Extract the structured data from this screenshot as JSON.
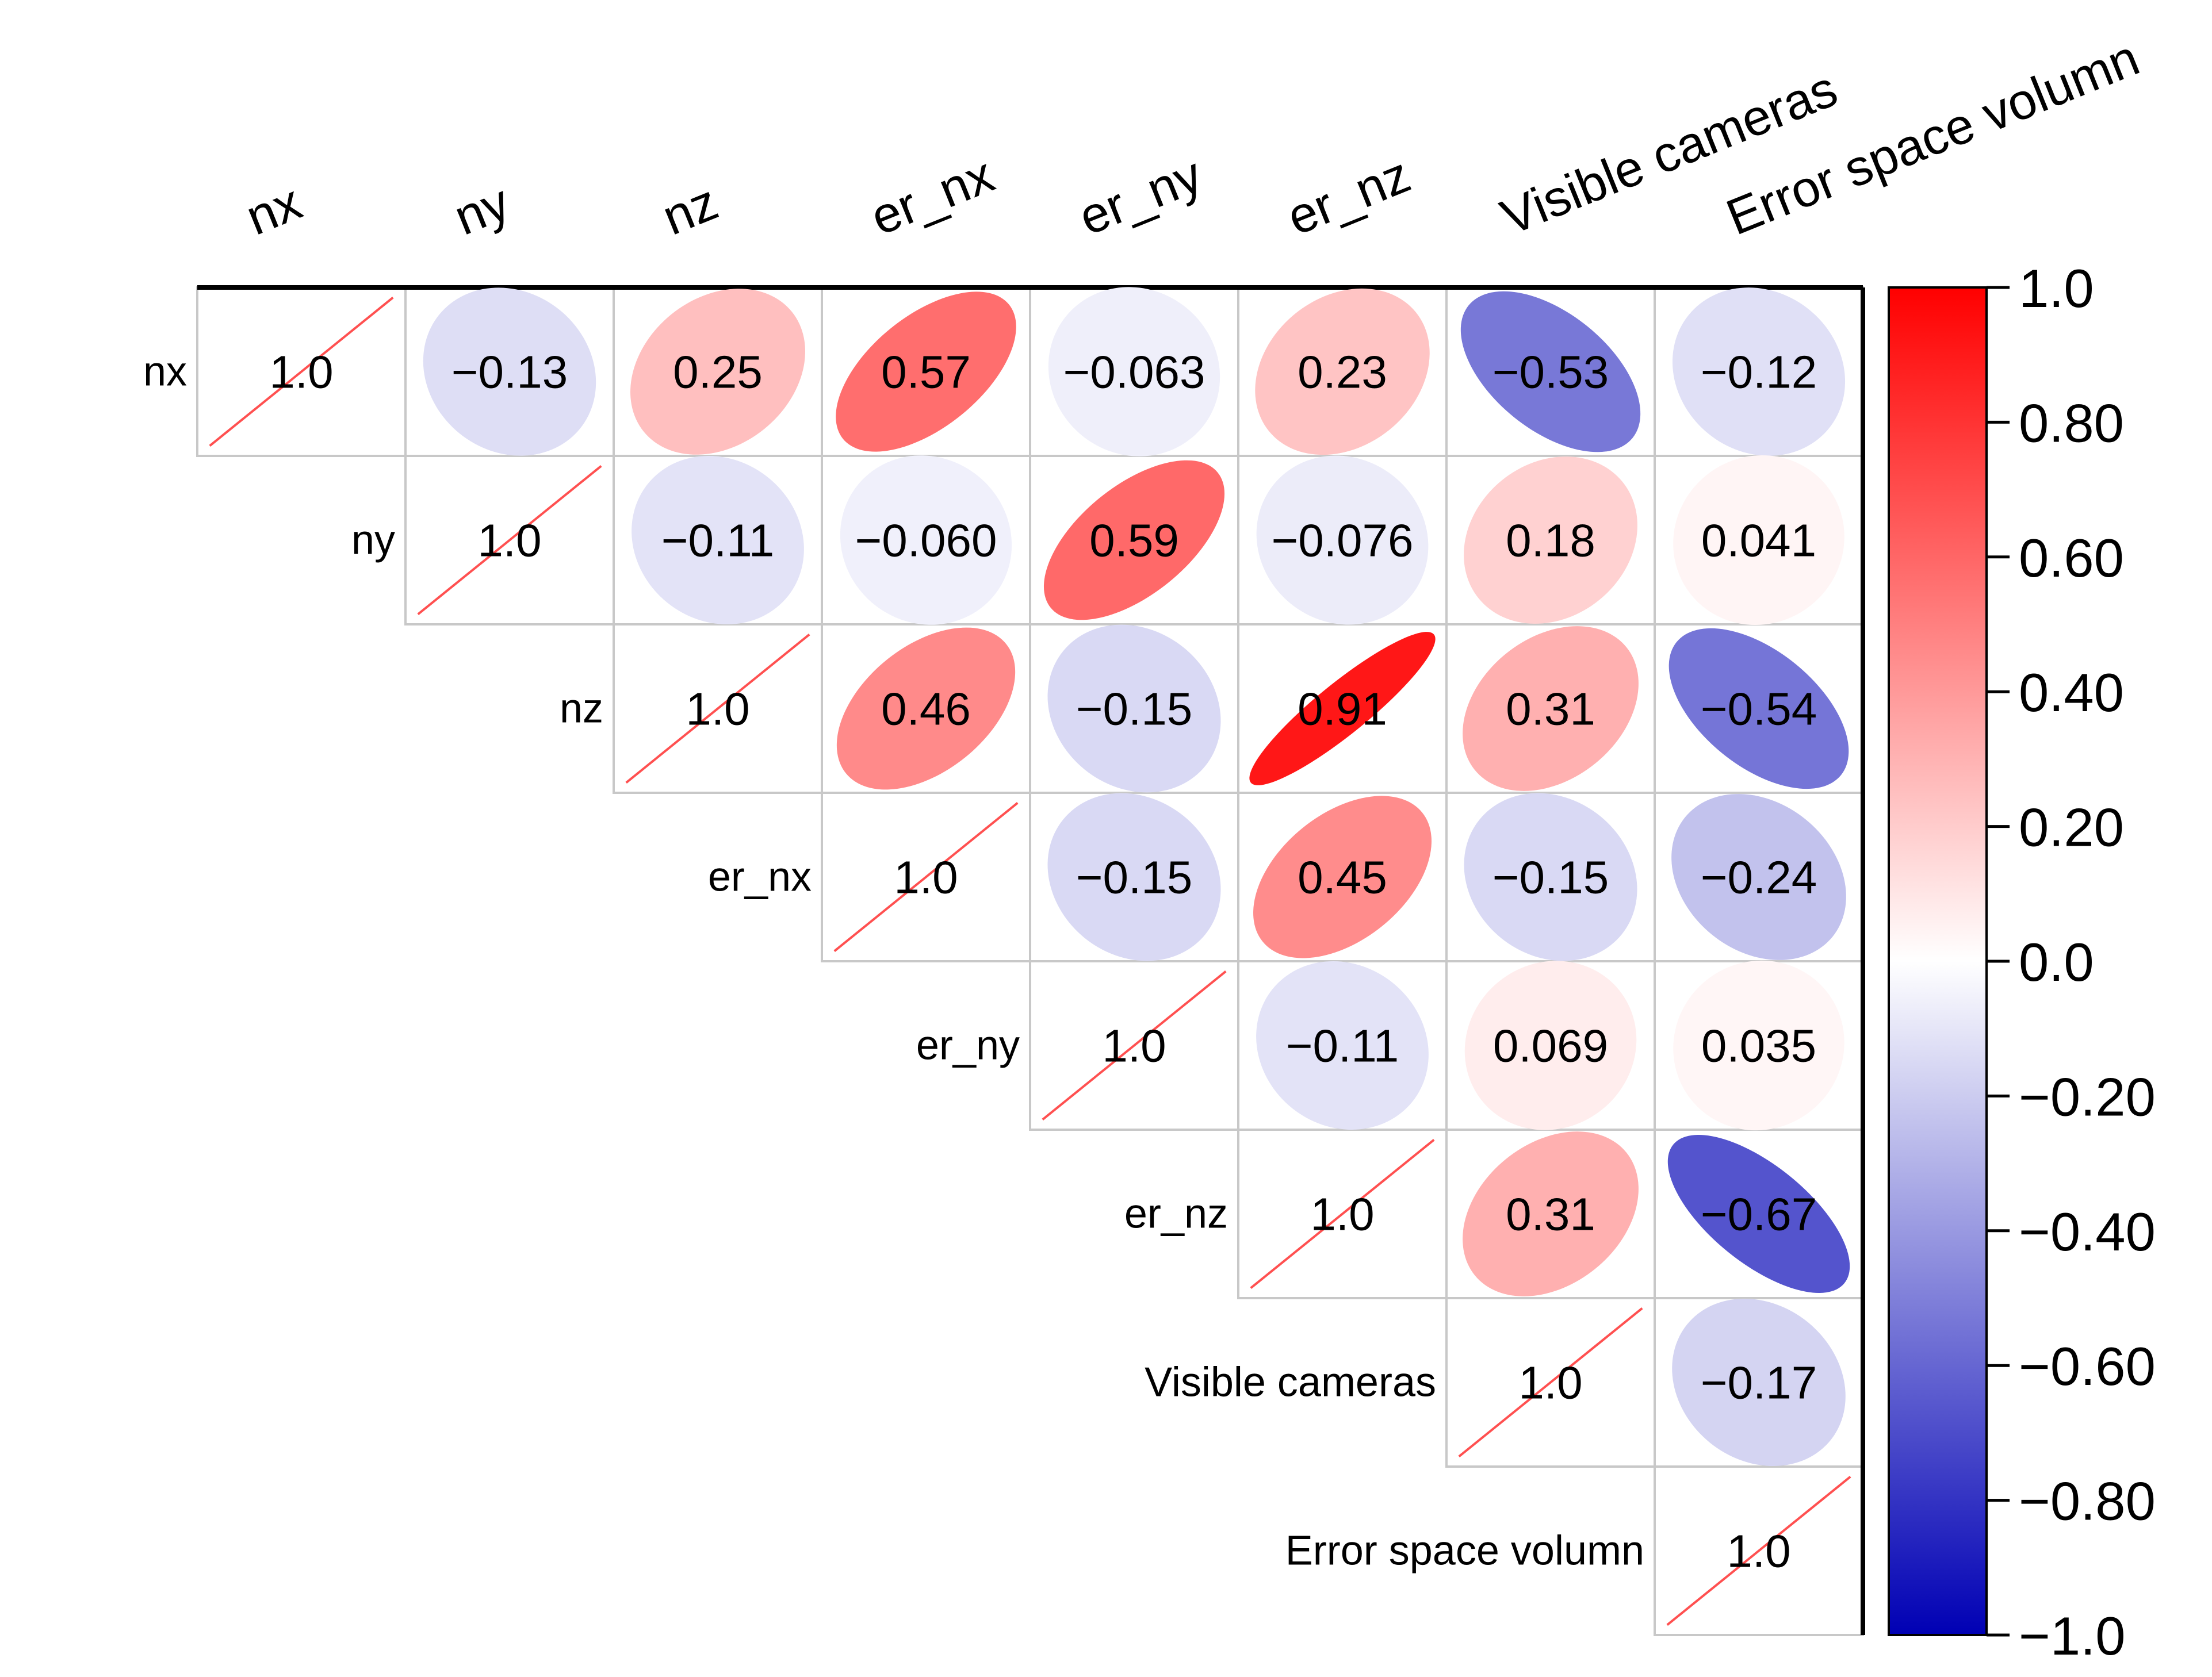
{
  "chart_data": {
    "type": "heatmap",
    "subtype": "correlation-matrix-upper-ellipse",
    "variables": [
      "nx",
      "ny",
      "nz",
      "er_nx",
      "er_ny",
      "er_nz",
      "Visible cameras",
      "Error space volumn"
    ],
    "matrix": [
      [
        1.0,
        -0.13,
        0.25,
        0.57,
        -0.063,
        0.23,
        -0.53,
        -0.12
      ],
      [
        null,
        1.0,
        -0.11,
        -0.06,
        0.59,
        -0.076,
        0.18,
        0.041
      ],
      [
        null,
        null,
        1.0,
        0.46,
        -0.15,
        0.91,
        0.31,
        -0.54
      ],
      [
        null,
        null,
        null,
        1.0,
        -0.15,
        0.45,
        -0.15,
        -0.24
      ],
      [
        null,
        null,
        null,
        null,
        1.0,
        -0.11,
        0.069,
        0.035
      ],
      [
        null,
        null,
        null,
        null,
        null,
        1.0,
        0.31,
        -0.67
      ],
      [
        null,
        null,
        null,
        null,
        null,
        null,
        1.0,
        -0.17
      ],
      [
        null,
        null,
        null,
        null,
        null,
        null,
        null,
        1.0
      ]
    ],
    "labels": [
      [
        "1.0",
        "−0.13",
        "0.25",
        "0.57",
        "−0.063",
        "0.23",
        "−0.53",
        "−0.12"
      ],
      [
        null,
        "1.0",
        "−0.11",
        "−0.060",
        "0.59",
        "−0.076",
        "0.18",
        "0.041"
      ],
      [
        null,
        null,
        "1.0",
        "0.46",
        "−0.15",
        "0.91",
        "0.31",
        "−0.54"
      ],
      [
        null,
        null,
        null,
        "1.0",
        "−0.15",
        "0.45",
        "−0.15",
        "−0.24"
      ],
      [
        null,
        null,
        null,
        null,
        "1.0",
        "−0.11",
        "0.069",
        "0.035"
      ],
      [
        null,
        null,
        null,
        null,
        null,
        "1.0",
        "0.31",
        "−0.67"
      ],
      [
        null,
        null,
        null,
        null,
        null,
        null,
        "1.0",
        "−0.17"
      ],
      [
        null,
        null,
        null,
        null,
        null,
        null,
        null,
        "1.0"
      ]
    ],
    "colorbar": {
      "range": [
        -1.0,
        1.0
      ],
      "tick_values": [
        1.0,
        0.8,
        0.6,
        0.4,
        0.2,
        0.0,
        -0.2,
        -0.4,
        -0.6,
        -0.8,
        -1.0
      ],
      "tick_labels": [
        "1.0",
        "0.80",
        "0.60",
        "0.40",
        "0.20",
        "0.0",
        "−0.20",
        "−0.40",
        "−0.60",
        "−0.80",
        "−1.0"
      ]
    },
    "colors": {
      "positive": "#ff0000",
      "neutral": "#ffffff",
      "negative": "#0000b4",
      "diagonal_line": "#ff5050",
      "grid": "#c8c8c8"
    },
    "legend_position": "right"
  }
}
